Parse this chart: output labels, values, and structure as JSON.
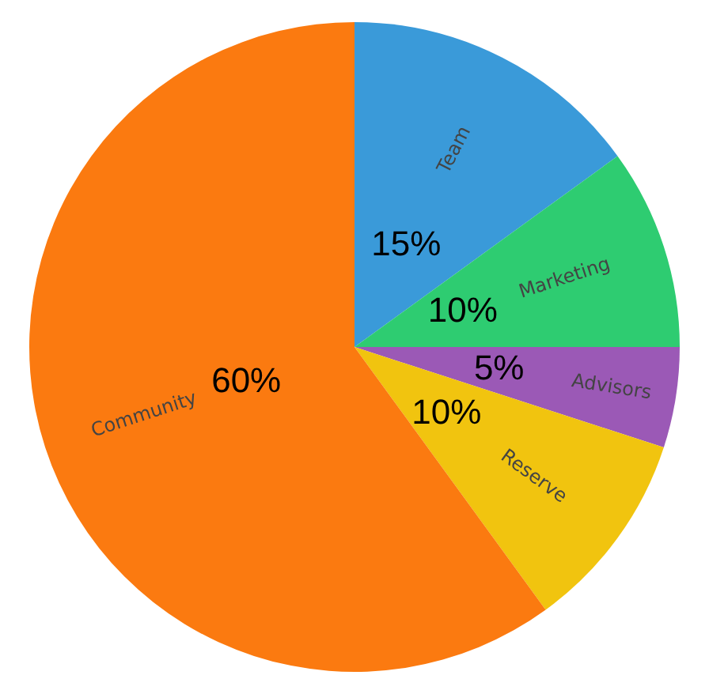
{
  "chart_data": {
    "type": "pie",
    "categories": [
      "Team",
      "Marketing",
      "Advisors",
      "Reserve",
      "Community"
    ],
    "values": [
      15,
      10,
      5,
      10,
      60
    ],
    "colors": [
      "#3a9ad9",
      "#2ecc71",
      "#9b59b6",
      "#f1c40f",
      "#fb7a10"
    ],
    "value_labels": [
      "15%",
      "10%",
      "5%",
      "10%",
      "60%"
    ],
    "legend": false
  }
}
